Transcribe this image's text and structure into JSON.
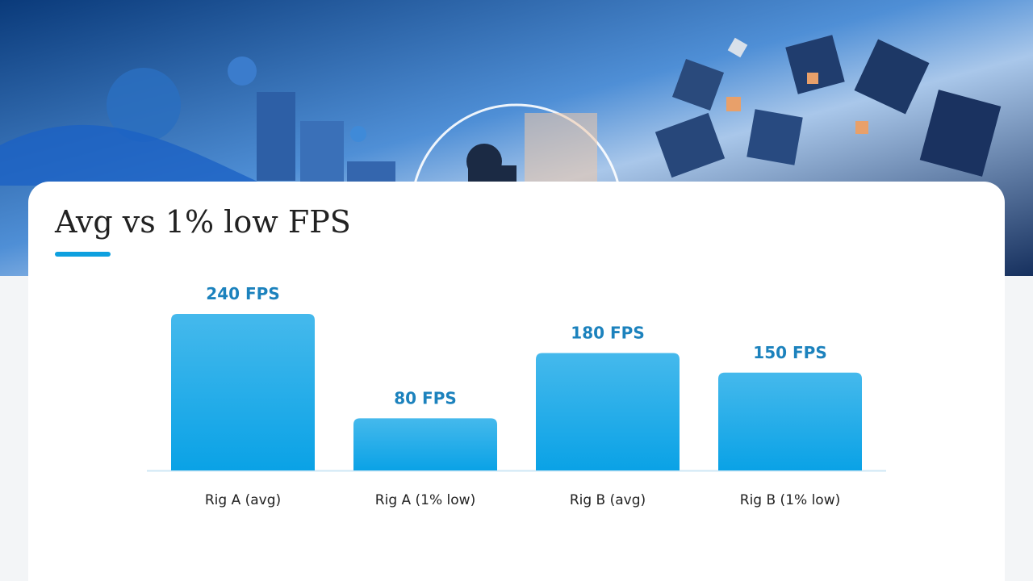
{
  "chart_data": {
    "type": "bar",
    "title": "Avg vs 1% low FPS",
    "categories": [
      "Rig A (avg)",
      "Rig A (1% low)",
      "Rig B (avg)",
      "Rig B (1% low)"
    ],
    "values": [
      240,
      80,
      180,
      150
    ],
    "value_labels": [
      "240 FPS",
      "80 FPS",
      "180 FPS",
      "150 FPS"
    ],
    "color": "#23aeea"
  }
}
